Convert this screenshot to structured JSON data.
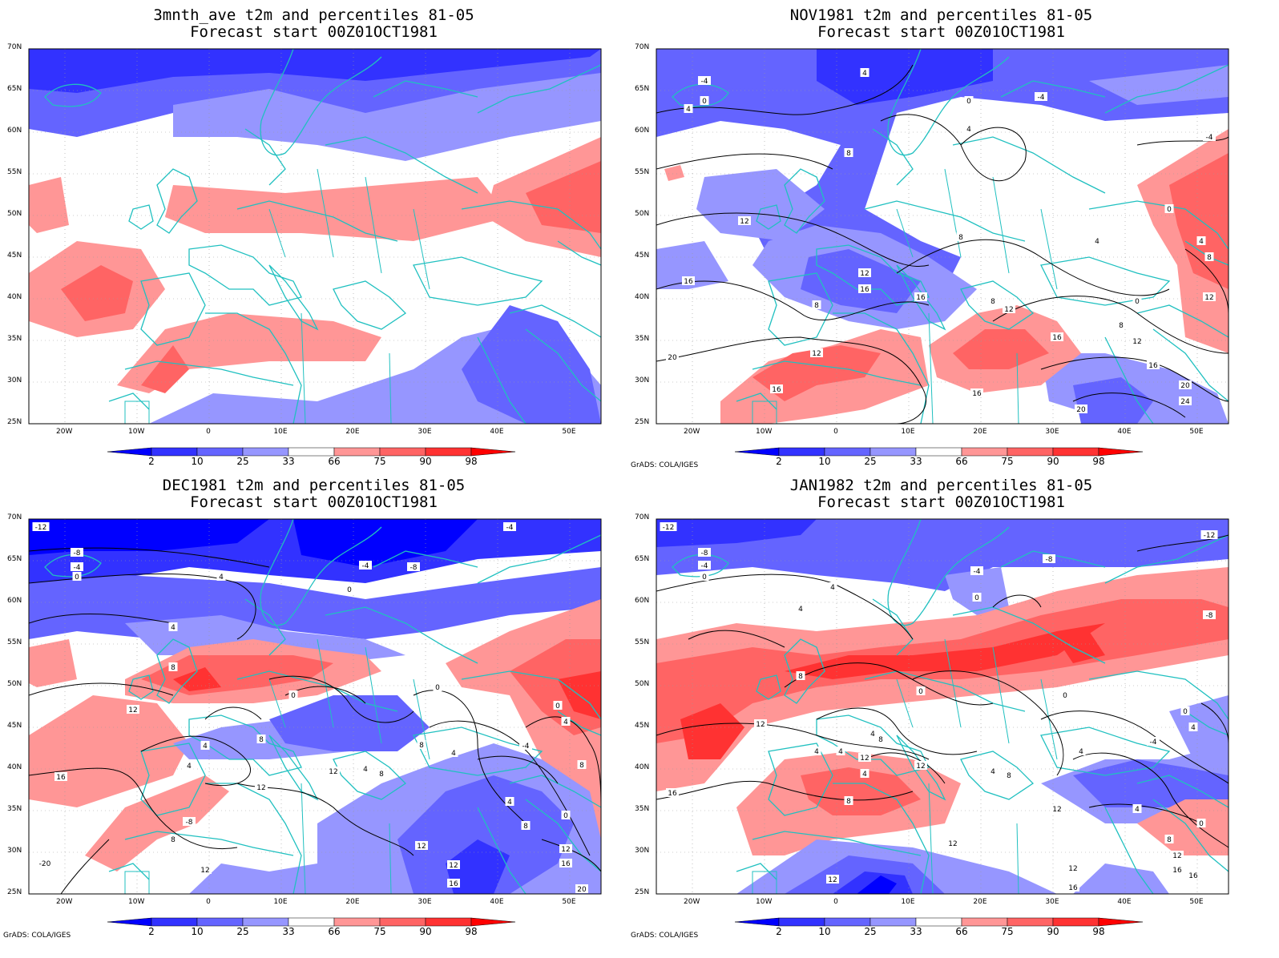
{
  "panels": [
    {
      "title_line1": "3mnth_ave t2m and percentiles 81-05",
      "title_line2": "Forecast start 00Z01OCT1981",
      "credit": ""
    },
    {
      "title_line1": "NOV1981 t2m and percentiles 81-05",
      "title_line2": "Forecast start 00Z01OCT1981",
      "credit": "GrADS: COLA/IGES"
    },
    {
      "title_line1": "DEC1981 t2m and percentiles 81-05",
      "title_line2": "Forecast start 00Z01OCT1981",
      "credit": "GrADS: COLA/IGES"
    },
    {
      "title_line1": "JAN1982 t2m and percentiles 81-05",
      "title_line2": "Forecast start 00Z01OCT1981",
      "credit": "GrADS: COLA/IGES"
    }
  ],
  "lat_labels": [
    "70N",
    "65N",
    "60N",
    "55N",
    "50N",
    "45N",
    "40N",
    "35N",
    "30N",
    "25N"
  ],
  "lon_labels": [
    "20W",
    "10W",
    "0",
    "10E",
    "20E",
    "30E",
    "40E",
    "50E"
  ],
  "colorbar": {
    "labels": [
      "2",
      "10",
      "25",
      "33",
      "66",
      "75",
      "90",
      "98"
    ],
    "colors": [
      "#0000ff",
      "#3232ff",
      "#6464ff",
      "#9696ff",
      "#ffffff",
      "#ff9696",
      "#ff6464",
      "#ff3232",
      "#ff0000"
    ]
  },
  "colors": {
    "coast": "#20c0c0",
    "contour": "#000000",
    "land_bg": "#ffffff"
  }
}
